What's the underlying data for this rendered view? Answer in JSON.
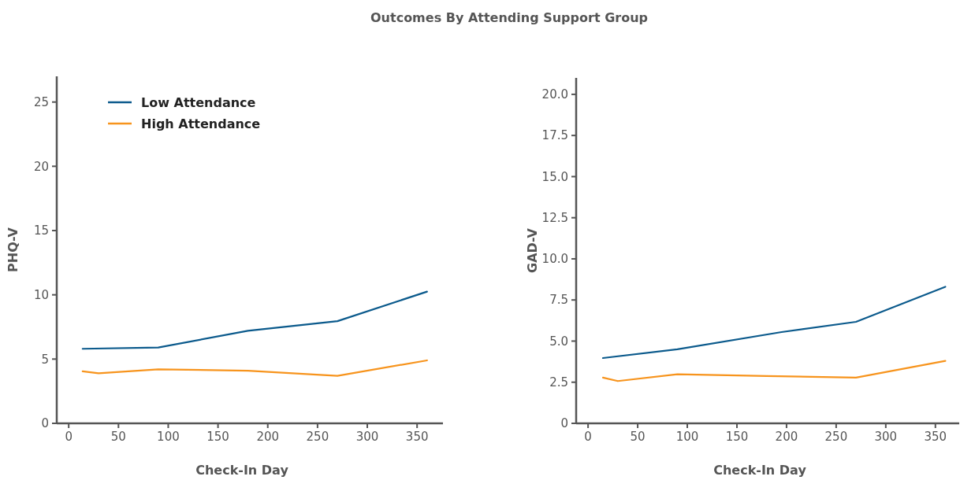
{
  "chart_data": [
    {
      "type": "line",
      "title": "Outcomes By Attending Support Group",
      "xlabel": "Check-In Day",
      "ylabel": "PHQ-V",
      "xlim": [
        -12,
        376
      ],
      "xticks": [
        0,
        50,
        100,
        150,
        200,
        250,
        300,
        350
      ],
      "ylim": [
        0,
        27
      ],
      "yticks": [
        0,
        5,
        10,
        15,
        20,
        25
      ],
      "grid": false,
      "legend": "top left",
      "series": [
        {
          "name": "Low Attendance",
          "color": "#0b5a8c",
          "x": [
            14,
            90,
            180,
            270,
            360
          ],
          "values": [
            5.8,
            5.9,
            7.2,
            7.95,
            10.25
          ]
        },
        {
          "name": "High Attendance",
          "color": "#f7941d",
          "x": [
            14,
            30,
            90,
            180,
            270,
            360
          ],
          "values": [
            4.05,
            3.9,
            4.2,
            4.1,
            3.7,
            4.9
          ]
        }
      ]
    },
    {
      "type": "line",
      "xlabel": "Check-In Day",
      "ylabel": "GAD-V",
      "xlim": [
        -12,
        374
      ],
      "xticks": [
        0,
        50,
        100,
        150,
        200,
        250,
        300,
        350
      ],
      "ylim": [
        0,
        21
      ],
      "yticks": [
        {
          "value": 0,
          "label": "0"
        },
        {
          "value": 2.5,
          "label": "2.5"
        },
        {
          "value": 5,
          "label": "5.0"
        },
        {
          "value": 7.5,
          "label": "7.5"
        },
        {
          "value": 10,
          "label": "10.0"
        },
        {
          "value": 12.5,
          "label": "12.5"
        },
        {
          "value": 15,
          "label": "15.0"
        },
        {
          "value": 17.5,
          "label": "17.5"
        },
        {
          "value": 20,
          "label": "20.0"
        }
      ],
      "grid": false,
      "legend": false,
      "series": [
        {
          "color": "#0b5a8c",
          "x": [
            15,
            90,
            195,
            270,
            360
          ],
          "values": [
            3.97,
            4.5,
            5.55,
            6.17,
            8.3
          ]
        },
        {
          "color": "#f7941d",
          "x": [
            15,
            30,
            90,
            180,
            270,
            360
          ],
          "values": [
            2.78,
            2.57,
            2.98,
            2.88,
            2.78,
            3.8
          ]
        }
      ]
    }
  ]
}
